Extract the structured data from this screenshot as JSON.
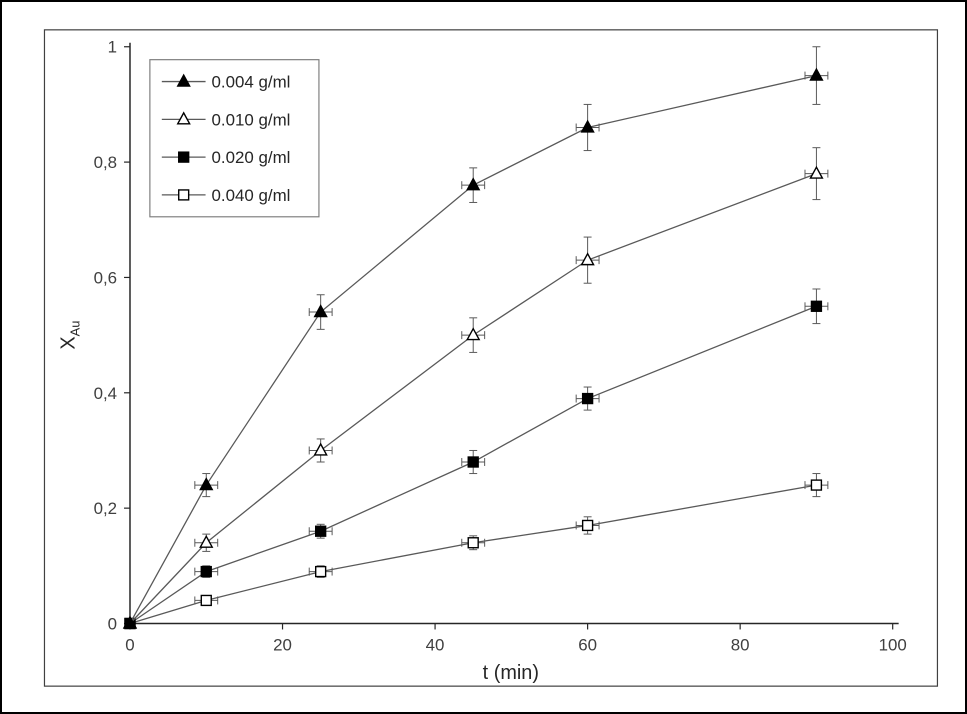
{
  "figure": {
    "background": "#ffffff",
    "outer_border_color": "#000000",
    "inner_border_color": "#404040"
  },
  "chart_data": {
    "type": "line",
    "title": "",
    "xlabel": "t (min)",
    "ylabel": "X_Au",
    "ylabel_base": "X",
    "ylabel_sub": "Au",
    "xlim": [
      0,
      100
    ],
    "ylim": [
      0,
      1
    ],
    "x_ticks": [
      0,
      20,
      40,
      60,
      80,
      100
    ],
    "x_tick_labels": [
      "0",
      "20",
      "40",
      "60",
      "80",
      "100"
    ],
    "y_ticks": [
      0,
      0.2,
      0.4,
      0.6,
      0.8,
      1
    ],
    "y_tick_labels": [
      "0",
      "0,2",
      "0,4",
      "0,6",
      "0,8",
      "1"
    ],
    "grid": false,
    "legend_position": "top-left",
    "x": [
      0,
      10,
      25,
      45,
      60,
      90
    ],
    "xerr": 1.5,
    "series": [
      {
        "name": "0.004 g/ml",
        "marker": "triangle-filled",
        "values": [
          0,
          0.24,
          0.54,
          0.76,
          0.86,
          0.95
        ],
        "yerr": [
          0,
          0.02,
          0.03,
          0.03,
          0.04,
          0.05
        ]
      },
      {
        "name": "0.010 g/ml",
        "marker": "triangle-open",
        "values": [
          0,
          0.14,
          0.3,
          0.5,
          0.63,
          0.78
        ],
        "yerr": [
          0,
          0.015,
          0.02,
          0.03,
          0.04,
          0.045
        ]
      },
      {
        "name": "0.020 g/ml",
        "marker": "square-filled",
        "values": [
          0,
          0.09,
          0.16,
          0.28,
          0.39,
          0.55
        ],
        "yerr": [
          0,
          0.01,
          0.012,
          0.02,
          0.02,
          0.03
        ]
      },
      {
        "name": "0.040 g/ml",
        "marker": "square-open",
        "values": [
          0,
          0.04,
          0.09,
          0.14,
          0.17,
          0.24
        ],
        "yerr": [
          0,
          0.008,
          0.01,
          0.012,
          0.015,
          0.02
        ]
      }
    ],
    "axis_color": "#262626",
    "line_color": "#595959",
    "marker_color": "#000000",
    "legend_border_color": "#7f7f7f"
  }
}
